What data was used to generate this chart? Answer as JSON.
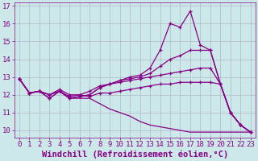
{
  "xlabel": "Windchill (Refroidissement éolien,°C)",
  "background_color": "#cce8e8",
  "grid_color": "#b0b8cc",
  "line_color": "#880088",
  "xlim": [
    -0.5,
    23.5
  ],
  "ylim": [
    9.6,
    17.2
  ],
  "xticks": [
    0,
    1,
    2,
    3,
    4,
    5,
    6,
    7,
    8,
    9,
    10,
    11,
    12,
    13,
    14,
    15,
    16,
    17,
    18,
    19,
    20,
    21,
    22,
    23
  ],
  "yticks": [
    10,
    11,
    12,
    13,
    14,
    15,
    16,
    17
  ],
  "lines": [
    {
      "y": [
        12.9,
        12.1,
        12.2,
        11.8,
        12.2,
        11.8,
        11.9,
        12.0,
        12.4,
        12.6,
        12.8,
        13.0,
        13.1,
        13.5,
        14.5,
        16.0,
        15.8,
        16.7,
        14.8,
        14.5,
        12.6,
        11.0,
        10.3,
        9.9
      ],
      "markers": true
    },
    {
      "y": [
        12.9,
        12.1,
        12.2,
        11.8,
        12.2,
        11.8,
        11.9,
        12.0,
        12.4,
        12.6,
        12.8,
        12.9,
        13.0,
        13.2,
        13.6,
        14.0,
        14.2,
        14.5,
        14.5,
        14.5,
        12.6,
        11.0,
        10.3,
        9.9
      ],
      "markers": true
    },
    {
      "y": [
        12.9,
        12.1,
        12.2,
        12.0,
        12.3,
        12.0,
        12.0,
        12.2,
        12.5,
        12.6,
        12.7,
        12.8,
        12.9,
        13.0,
        13.1,
        13.2,
        13.3,
        13.4,
        13.5,
        13.5,
        12.6,
        11.0,
        10.3,
        9.9
      ],
      "markers": true
    },
    {
      "y": [
        12.9,
        12.1,
        12.2,
        12.0,
        12.2,
        11.9,
        12.0,
        11.9,
        12.1,
        12.1,
        12.2,
        12.3,
        12.4,
        12.5,
        12.6,
        12.6,
        12.7,
        12.7,
        12.7,
        12.7,
        12.6,
        11.0,
        10.3,
        9.9
      ],
      "markers": true
    },
    {
      "y": [
        12.9,
        12.1,
        12.2,
        12.0,
        12.2,
        11.8,
        11.8,
        11.8,
        11.5,
        11.2,
        11.0,
        10.8,
        10.5,
        10.3,
        10.2,
        10.1,
        10.0,
        9.9,
        9.9,
        9.9,
        9.9,
        9.9,
        9.9,
        9.9
      ],
      "markers": false
    }
  ],
  "xlabel_fontsize": 7.5,
  "tick_fontsize": 6.5
}
